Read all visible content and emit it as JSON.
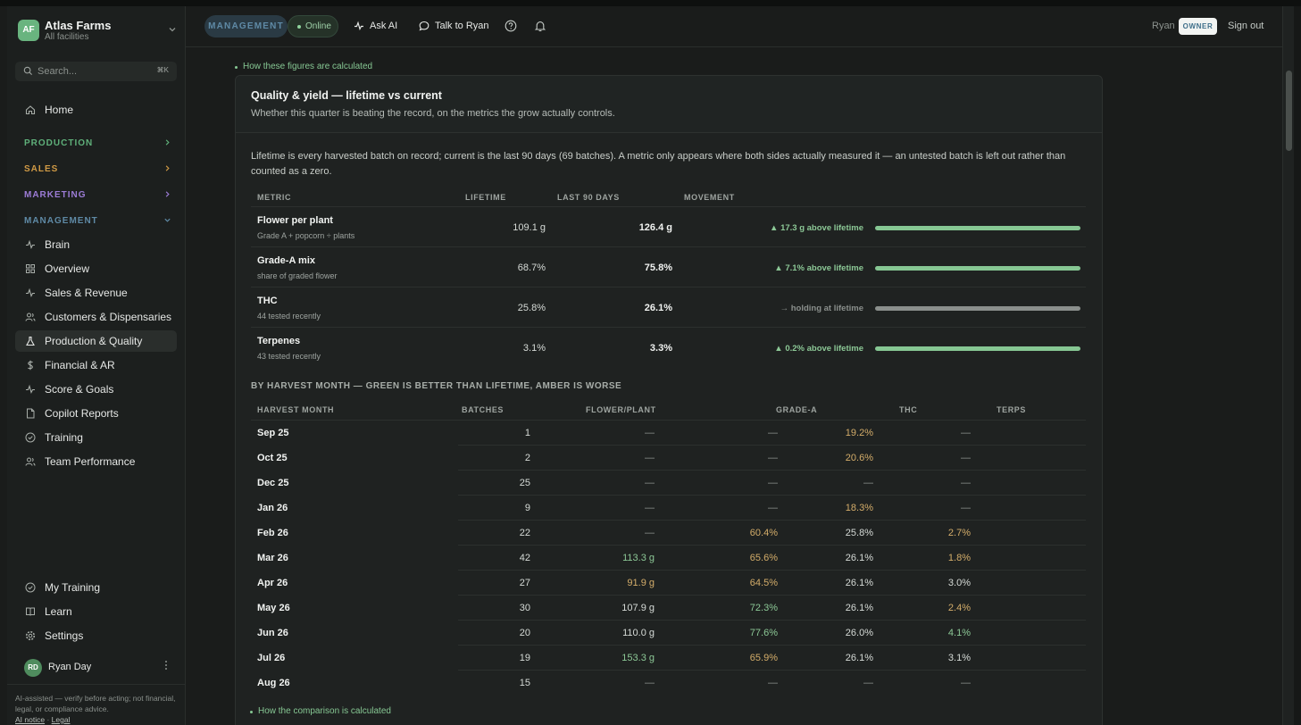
{
  "app": {
    "name": "Atlas Farms",
    "initials": "AF",
    "scope": "All facilities"
  },
  "search": {
    "placeholder": "Search...",
    "shortcut": "⌘K"
  },
  "sidebar": {
    "home": "Home",
    "sections": [
      {
        "label": "PRODUCTION",
        "color": "#5fb07a"
      },
      {
        "label": "SALES",
        "color": "#d09a45"
      },
      {
        "label": "MARKETING",
        "color": "#9c7cd6"
      },
      {
        "label": "MANAGEMENT",
        "color": "#5f8aa6"
      }
    ],
    "items": [
      {
        "label": "Brain",
        "icon": "activity-icon"
      },
      {
        "label": "Overview",
        "icon": "grid-icon"
      },
      {
        "label": "Sales & Revenue",
        "icon": "activity-icon"
      },
      {
        "label": "Customers & Dispensaries",
        "icon": "users-icon"
      },
      {
        "label": "Production & Quality",
        "icon": "flask-icon"
      },
      {
        "label": "Financial & AR",
        "icon": "dollar-icon"
      },
      {
        "label": "Score & Goals",
        "icon": "activity-icon"
      },
      {
        "label": "Copilot Reports",
        "icon": "document-icon"
      },
      {
        "label": "Training",
        "icon": "check-circle-icon"
      },
      {
        "label": "Team Performance",
        "icon": "users-icon"
      }
    ],
    "bottom": [
      {
        "label": "My Training",
        "icon": "check-circle-icon"
      },
      {
        "label": "Learn",
        "icon": "book-icon"
      },
      {
        "label": "Settings",
        "icon": "gear-icon"
      }
    ],
    "user": {
      "initials": "RD",
      "name": "Ryan Day"
    },
    "disclaimer": "AI-assisted — verify before acting; not financial, legal, or compliance advice.",
    "ai_notice": "AI notice",
    "legal": "Legal"
  },
  "header": {
    "badge": "MANAGEMENT",
    "status": "Online",
    "ask_ai": "Ask AI",
    "talk": "Talk to Ryan",
    "user": "Ryan",
    "role": "OWNER",
    "signout": "Sign out"
  },
  "main": {
    "calc_link_top": "How these figures are calculated",
    "calc_link_bottom": "How the comparison is calculated",
    "card_title": "Quality & yield — lifetime vs current",
    "card_subtitle": "Whether this quarter is beating the record, on the metrics the grow actually controls.",
    "intro": "Lifetime is every harvested batch on record; current is the last 90 days (69 batches). A metric only appears where both sides actually measured it — an untested batch is left out rather than counted as a zero.",
    "metric_headers": [
      "METRIC",
      "LIFETIME",
      "LAST 90 DAYS",
      "MOVEMENT"
    ],
    "metrics": [
      {
        "name": "Flower per plant",
        "sub": "Grade A + popcorn ÷ plants",
        "lifetime": "109.1 g",
        "current": "126.4 g",
        "movement": "▲ 17.3 g above lifetime",
        "status": "up"
      },
      {
        "name": "Grade-A mix",
        "sub": "share of graded flower",
        "lifetime": "68.7%",
        "current": "75.8%",
        "movement": "▲ 7.1% above lifetime",
        "status": "up"
      },
      {
        "name": "THC",
        "sub": "44 tested recently",
        "lifetime": "25.8%",
        "current": "26.1%",
        "movement": "→ holding at lifetime",
        "status": "flat"
      },
      {
        "name": "Terpenes",
        "sub": "43 tested recently",
        "lifetime": "3.1%",
        "current": "3.3%",
        "movement": "▲ 0.2% above lifetime",
        "status": "up"
      }
    ],
    "month_title": "BY HARVEST MONTH — GREEN IS BETTER THAN LIFETIME, AMBER IS WORSE",
    "month_headers": [
      "HARVEST MONTH",
      "BATCHES",
      "FLOWER/PLANT",
      "GRADE-A",
      "THC",
      "TERPS"
    ],
    "months": [
      {
        "month": "Sep 25",
        "batches": "1",
        "flower": "—",
        "flower_s": "dash",
        "grade": "—",
        "grade_s": "dash",
        "thc": "19.2%",
        "thc_s": "amber",
        "terps": "—",
        "terps_s": "dash"
      },
      {
        "month": "Oct 25",
        "batches": "2",
        "flower": "—",
        "flower_s": "dash",
        "grade": "—",
        "grade_s": "dash",
        "thc": "20.6%",
        "thc_s": "amber",
        "terps": "—",
        "terps_s": "dash"
      },
      {
        "month": "Dec 25",
        "batches": "25",
        "flower": "—",
        "flower_s": "dash",
        "grade": "—",
        "grade_s": "dash",
        "thc": "—",
        "thc_s": "dash",
        "terps": "—",
        "terps_s": "dash"
      },
      {
        "month": "Jan 26",
        "batches": "9",
        "flower": "—",
        "flower_s": "dash",
        "grade": "—",
        "grade_s": "dash",
        "thc": "18.3%",
        "thc_s": "amber",
        "terps": "—",
        "terps_s": "dash"
      },
      {
        "month": "Feb 26",
        "batches": "22",
        "flower": "—",
        "flower_s": "dash",
        "grade": "60.4%",
        "grade_s": "amber",
        "thc": "25.8%",
        "thc_s": "neutral",
        "terps": "2.7%",
        "terps_s": "amber"
      },
      {
        "month": "Mar 26",
        "batches": "42",
        "flower": "113.3 g",
        "flower_s": "green",
        "grade": "65.6%",
        "grade_s": "amber",
        "thc": "26.1%",
        "thc_s": "neutral",
        "terps": "1.8%",
        "terps_s": "amber"
      },
      {
        "month": "Apr 26",
        "batches": "27",
        "flower": "91.9 g",
        "flower_s": "amber",
        "grade": "64.5%",
        "grade_s": "amber",
        "thc": "26.1%",
        "thc_s": "neutral",
        "terps": "3.0%",
        "terps_s": "neutral"
      },
      {
        "month": "May 26",
        "batches": "30",
        "flower": "107.9 g",
        "flower_s": "neutral",
        "grade": "72.3%",
        "grade_s": "green",
        "thc": "26.1%",
        "thc_s": "neutral",
        "terps": "2.4%",
        "terps_s": "amber"
      },
      {
        "month": "Jun 26",
        "batches": "20",
        "flower": "110.0 g",
        "flower_s": "neutral",
        "grade": "77.6%",
        "grade_s": "green",
        "thc": "26.0%",
        "thc_s": "neutral",
        "terps": "4.1%",
        "terps_s": "green"
      },
      {
        "month": "Jul 26",
        "batches": "19",
        "flower": "153.3 g",
        "flower_s": "green",
        "grade": "65.9%",
        "grade_s": "amber",
        "thc": "26.1%",
        "thc_s": "neutral",
        "terps": "3.1%",
        "terps_s": "neutral"
      },
      {
        "month": "Aug 26",
        "batches": "15",
        "flower": "—",
        "flower_s": "dash",
        "grade": "—",
        "grade_s": "dash",
        "thc": "—",
        "thc_s": "dash",
        "terps": "—",
        "terps_s": "dash"
      }
    ],
    "colors": {
      "green": "#8cc896",
      "amber": "#d4ad6a",
      "flat": "#8a8f8c"
    }
  }
}
